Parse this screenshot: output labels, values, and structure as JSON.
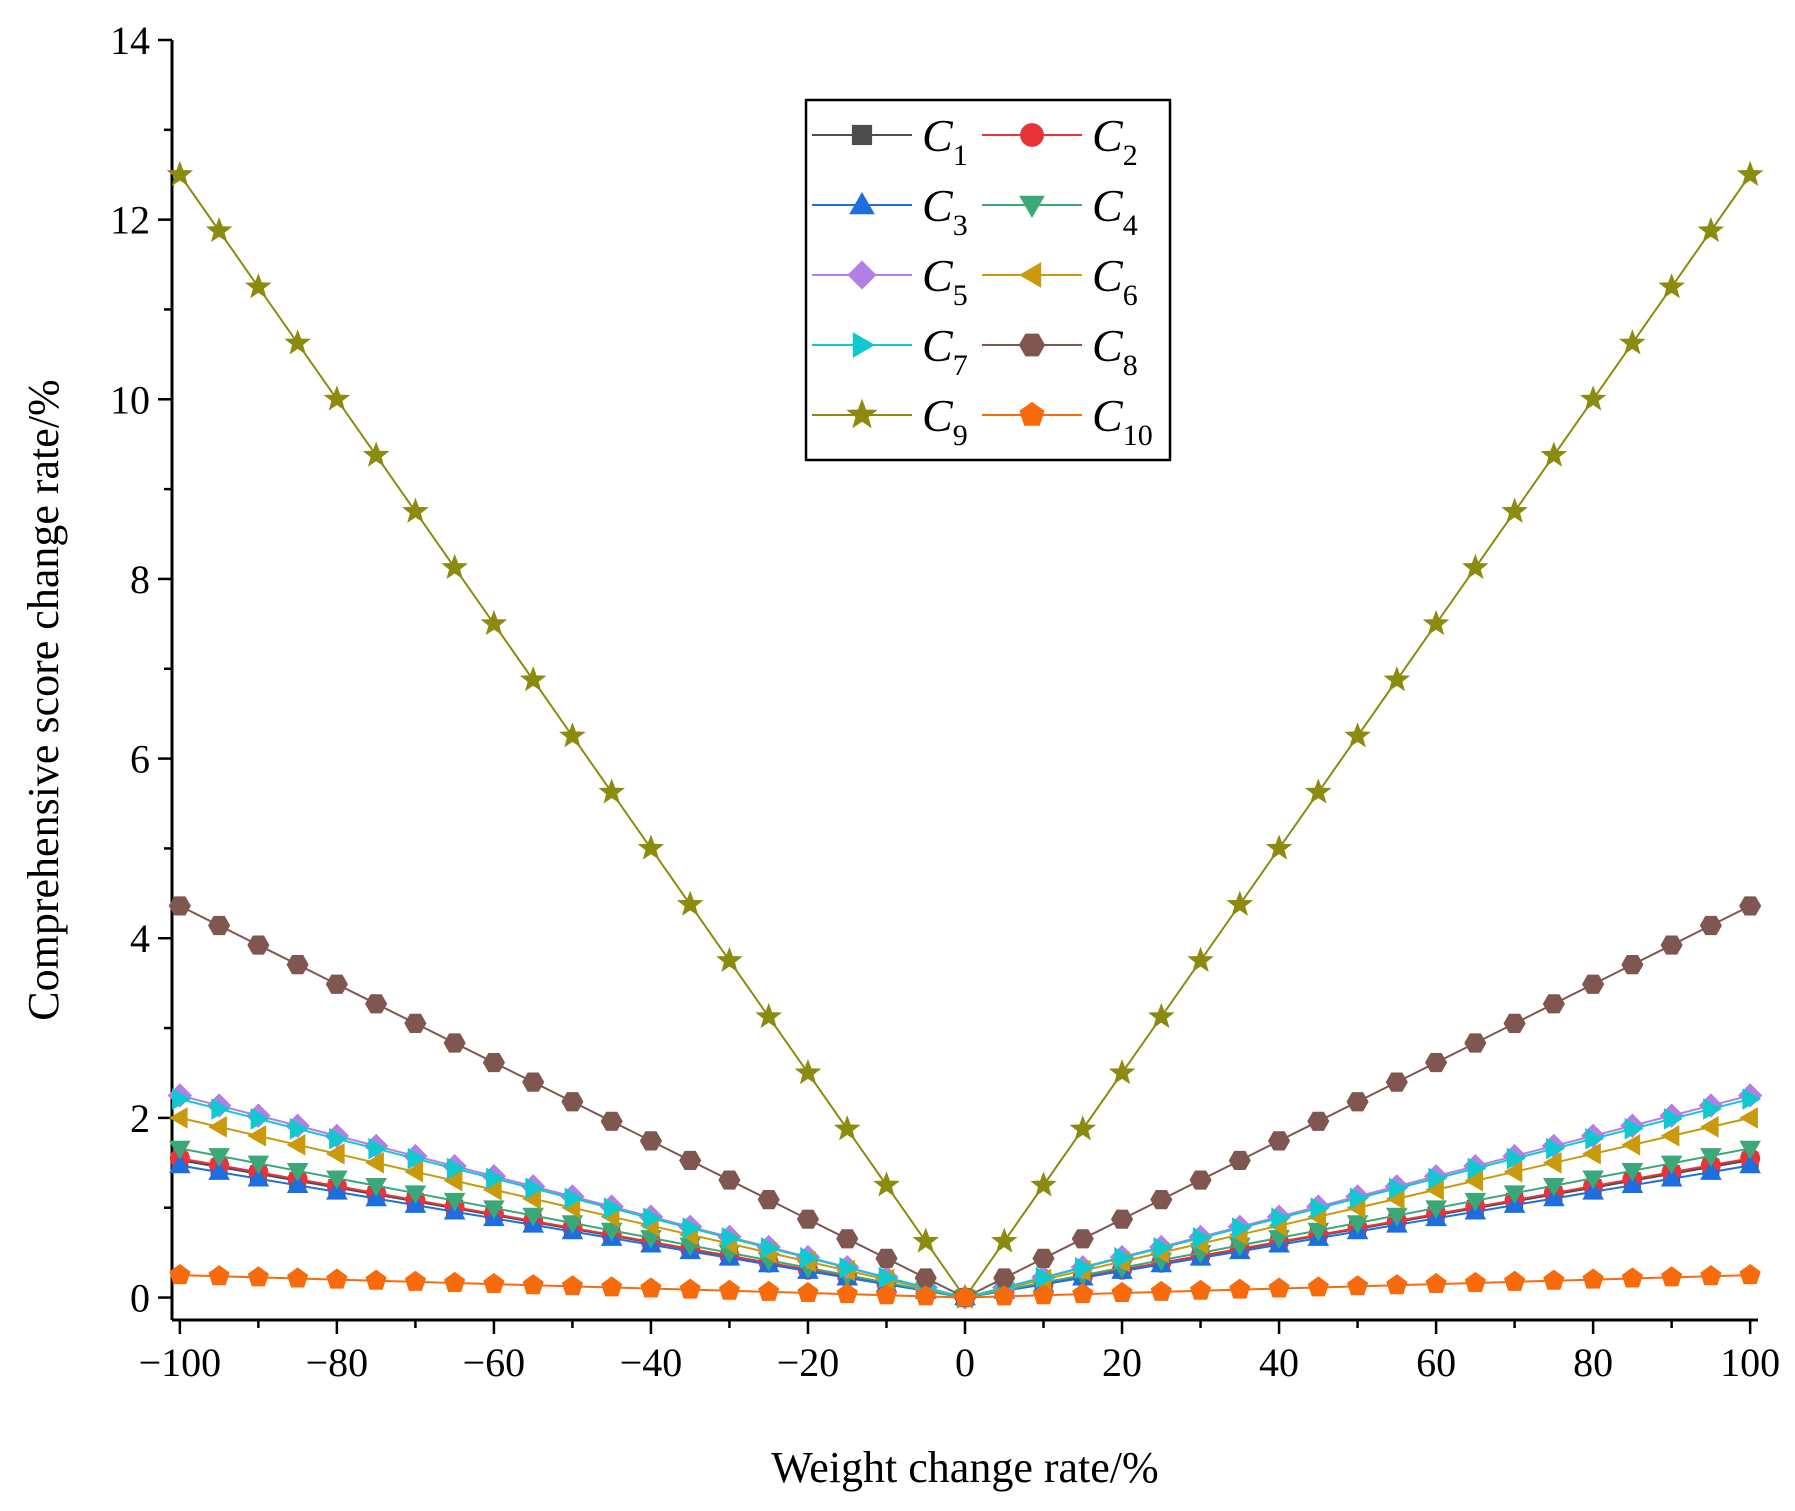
{
  "chart_data": {
    "type": "line",
    "title": "",
    "xlabel": "Weight change rate/%",
    "ylabel": "Comprehensive score change rate/%",
    "xlim": [
      -101,
      101
    ],
    "ylim": [
      -0.25,
      14
    ],
    "xticks": [
      -100,
      -80,
      -60,
      -40,
      -20,
      0,
      20,
      40,
      60,
      80,
      100
    ],
    "xtick_labels": [
      "−100",
      "−80",
      "−60",
      "−40",
      "−20",
      "0",
      "20",
      "40",
      "60",
      "80",
      "100"
    ],
    "yticks": [
      0,
      2,
      4,
      6,
      8,
      10,
      12,
      14
    ],
    "ytick_labels": [
      "0",
      "2",
      "4",
      "6",
      "8",
      "10",
      "12",
      "14"
    ],
    "grid": false,
    "legend_position": "top-center",
    "x": [
      -100,
      -95,
      -90,
      -85,
      -80,
      -75,
      -70,
      -65,
      -60,
      -55,
      -50,
      -45,
      -40,
      -35,
      -30,
      -25,
      -20,
      -15,
      -10,
      -5,
      0,
      5,
      10,
      15,
      20,
      25,
      30,
      35,
      40,
      45,
      50,
      55,
      60,
      65,
      70,
      75,
      80,
      85,
      90,
      95,
      100
    ],
    "series": [
      {
        "name": "C",
        "subscript": "1",
        "color": "#4d4d4d",
        "marker": "square",
        "slope": 0.0153
      },
      {
        "name": "C",
        "subscript": "2",
        "color": "#e8333a",
        "marker": "circle",
        "slope": 0.0155
      },
      {
        "name": "C",
        "subscript": "3",
        "color": "#1d6fe0",
        "marker": "triangle-up",
        "slope": 0.0147
      },
      {
        "name": "C",
        "subscript": "4",
        "color": "#3aa878",
        "marker": "triangle-down",
        "slope": 0.0166
      },
      {
        "name": "C",
        "subscript": "5",
        "color": "#b27fe4",
        "marker": "diamond",
        "slope": 0.0225
      },
      {
        "name": "C",
        "subscript": "6",
        "color": "#c99a0c",
        "marker": "triangle-left",
        "slope": 0.02
      },
      {
        "name": "C",
        "subscript": "7",
        "color": "#12c8d0",
        "marker": "triangle-right",
        "slope": 0.0221
      },
      {
        "name": "C",
        "subscript": "8",
        "color": "#7f5650",
        "marker": "hexagon",
        "slope": 0.0436
      },
      {
        "name": "C",
        "subscript": "9",
        "color": "#8b8b10",
        "marker": "star",
        "slope": 0.125
      },
      {
        "name": "C",
        "subscript": "10",
        "color": "#f76b0c",
        "marker": "pentagon",
        "slope": 0.0025
      }
    ],
    "series_formula": "y = slope * |x|"
  }
}
